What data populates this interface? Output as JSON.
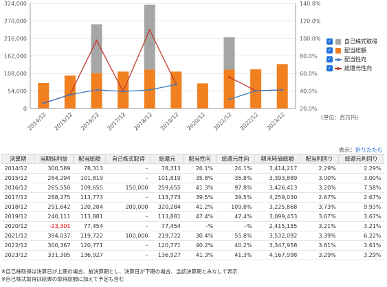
{
  "chart_data": {
    "type": "bar",
    "categories": [
      "2014/12",
      "2015/12",
      "2016/12",
      "2017/12",
      "2018/12",
      "2019/12",
      "2020/12",
      "2021/12",
      "2022/12",
      "2023/12"
    ],
    "left_axis": {
      "ticks": [
        "0",
        "54,000",
        "108,000",
        "162,000",
        "216,000",
        "270,000",
        "324,000"
      ],
      "ylim": [
        0,
        324000
      ]
    },
    "right_axis": {
      "ticks": [
        "20.0%",
        "40.0%",
        "60.0%",
        "80.0%",
        "100.0%",
        "120.0%",
        "140.0%"
      ],
      "ylim": [
        20,
        140
      ]
    },
    "series": [
      {
        "name": "自己株式取得",
        "kind": "stacked-bar",
        "values": [
          0,
          0,
          150000,
          0,
          200000,
          0,
          0,
          100000,
          0,
          0
        ],
        "color": "#a6a6a6"
      },
      {
        "name": "配当総額",
        "kind": "bar",
        "values": [
          78313,
          101819,
          109655,
          113773,
          120284,
          113881,
          77454,
          119722,
          120771,
          136927
        ],
        "color": "#f08020"
      },
      {
        "name": "配当性向",
        "kind": "line",
        "values": [
          26.1,
          35.8,
          41.3,
          39.5,
          41.2,
          47.4,
          null,
          30.4,
          40.2,
          41.3
        ],
        "color": "#3a78c2"
      },
      {
        "name": "総還元性向",
        "kind": "line",
        "values": [
          26.1,
          35.8,
          97.8,
          39.5,
          109.8,
          47.4,
          null,
          55.8,
          40.2,
          41.3
        ],
        "color": "#c0392b"
      }
    ],
    "unit_note": "(単位：百万円)",
    "legend_position": "right"
  },
  "legend": {
    "check": "✓"
  },
  "table": {
    "toggle_label": "表示：",
    "toggle_link": "折りたたむ",
    "headers": [
      "決算期",
      "当期純利益",
      "配当総額",
      "自己株式取得",
      "総還元",
      "配当性向",
      "総還元性向",
      "期末時価総額",
      "配当利回り",
      "総還元利回り"
    ],
    "rows": [
      [
        "2014/12",
        "300,589",
        "78,313",
        "–",
        "78,313",
        "26.1%",
        "26.1%",
        "3,414,217",
        "2.29%",
        "2.29%"
      ],
      [
        "2015/12",
        "284,294",
        "101,819",
        "–",
        "101,819",
        "35.8%",
        "35.8%",
        "3,393,889",
        "3.00%",
        "3.00%"
      ],
      [
        "2016/12",
        "265,550",
        "109,655",
        "150,000",
        "259,655",
        "41.3%",
        "97.8%",
        "3,426,413",
        "3.20%",
        "7.58%"
      ],
      [
        "2017/12",
        "288,275",
        "113,773",
        "–",
        "113,773",
        "39.5%",
        "39.5%",
        "4,259,030",
        "2.67%",
        "2.67%"
      ],
      [
        "2018/12",
        "291,642",
        "120,284",
        "200,000",
        "320,284",
        "41.2%",
        "109.8%",
        "3,225,868",
        "3.73%",
        "9.93%"
      ],
      [
        "2019/12",
        "240,111",
        "113,881",
        "–",
        "113,881",
        "47.4%",
        "47.4%",
        "3,099,453",
        "3.67%",
        "3.67%"
      ],
      [
        "2020/12",
        "-23,301",
        "77,454",
        "–",
        "77,454",
        "–%",
        "–%",
        "2,415,155",
        "3.21%",
        "3.21%"
      ],
      [
        "2021/12",
        "394,037",
        "119,722",
        "100,000",
        "219,722",
        "30.4%",
        "55.8%",
        "3,532,092",
        "3.39%",
        "6.22%"
      ],
      [
        "2022/12",
        "300,367",
        "120,771",
        "–",
        "120,771",
        "40.2%",
        "40.2%",
        "3,347,958",
        "3.61%",
        "3.61%"
      ],
      [
        "2023/12",
        "331,305",
        "136,927",
        "–",
        "136,927",
        "41.3%",
        "41.3%",
        "4,167,998",
        "3.29%",
        "3.29%"
      ]
    ]
  },
  "notes": [
    "※自己株取得は決算日が上期の場合、前決算期とし、決算日が下期の場合、当該決算期とみなして表示",
    "※自己株式取得は結果の取得総額に加えて予定も含む"
  ]
}
